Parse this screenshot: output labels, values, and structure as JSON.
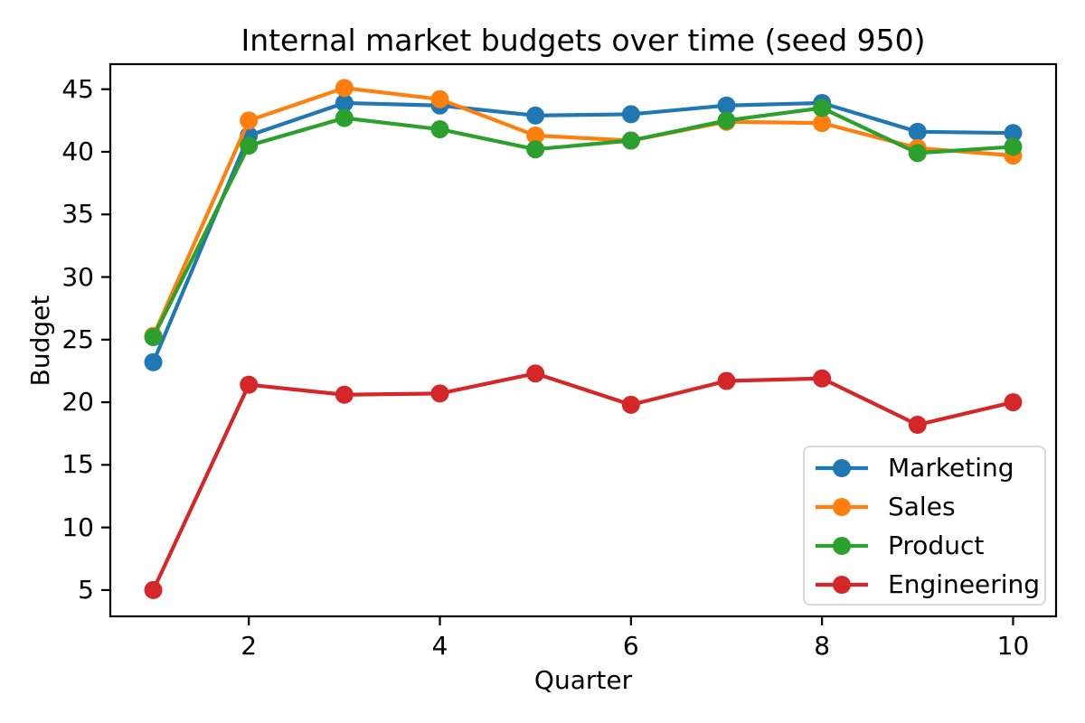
{
  "chart_data": {
    "type": "line",
    "title": "Internal market budgets over time (seed 950)",
    "xlabel": "Quarter",
    "ylabel": "Budget",
    "x": [
      1,
      2,
      3,
      4,
      5,
      6,
      7,
      8,
      9,
      10
    ],
    "series": [
      {
        "name": "Marketing",
        "color": "#1f77b4",
        "values": [
          23.2,
          41.3,
          43.9,
          43.7,
          42.9,
          43.0,
          43.7,
          43.9,
          41.6,
          41.5
        ]
      },
      {
        "name": "Sales",
        "color": "#ff7f0e",
        "values": [
          25.3,
          42.5,
          45.1,
          44.2,
          41.3,
          40.9,
          42.4,
          42.3,
          40.3,
          39.7
        ]
      },
      {
        "name": "Product",
        "color": "#2ca02c",
        "values": [
          25.2,
          40.5,
          42.7,
          41.8,
          40.2,
          40.9,
          42.5,
          43.5,
          39.9,
          40.4
        ]
      },
      {
        "name": "Engineering",
        "color": "#d62728",
        "values": [
          5.0,
          21.4,
          20.6,
          20.7,
          22.3,
          19.8,
          21.7,
          21.9,
          18.2,
          20.0
        ]
      }
    ],
    "xticks": [
      2,
      4,
      6,
      8,
      10
    ],
    "yticks": [
      5,
      10,
      15,
      20,
      25,
      30,
      35,
      40,
      45
    ],
    "xlim": [
      0.55,
      10.45
    ],
    "ylim": [
      2.9,
      47.0
    ],
    "grid": false,
    "legend_position": "lower right",
    "marker": "o",
    "spine_color": "#000000",
    "background_color": "#ffffff"
  }
}
